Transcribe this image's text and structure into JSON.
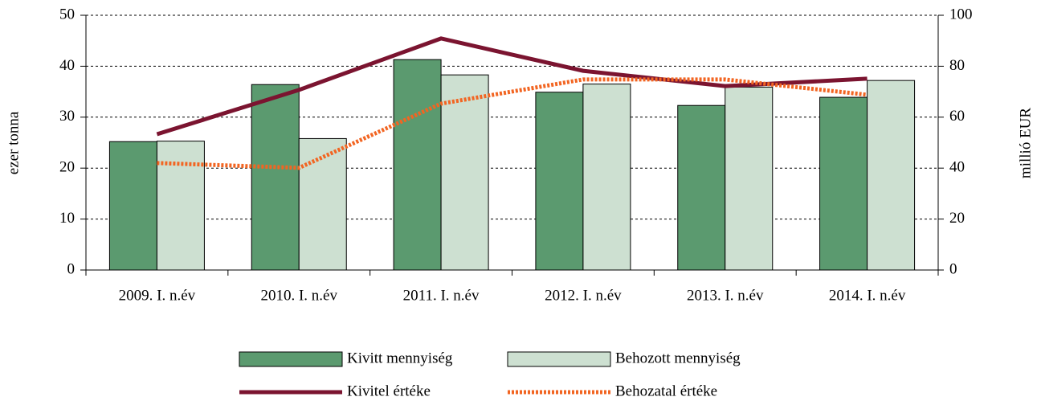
{
  "chart_data": {
    "type": "bar",
    "categories": [
      "2009. I. n.év",
      "2010. I. n.év",
      "2011. I. n.év",
      "2012. I. n.év",
      "2013. I. n.év",
      "2014. I. n.év"
    ],
    "series": [
      {
        "name": "Kivitt mennyiség",
        "type": "bar",
        "color": "#5b9a6f",
        "values": [
          25.2,
          36.4,
          41.3,
          34.9,
          32.3,
          33.9
        ]
      },
      {
        "name": "Behozott mennyiség",
        "type": "bar",
        "color": "#cde0d1",
        "values": [
          25.3,
          25.8,
          38.3,
          36.5,
          35.9,
          37.2
        ]
      },
      {
        "name": "Kivitel értéke",
        "type": "line",
        "axis": "y2",
        "color": "#7b1430",
        "style": "solid",
        "values": [
          53.3,
          70.7,
          90.9,
          78.2,
          72.2,
          75.1
        ]
      },
      {
        "name": "Behozatal értéke",
        "type": "line",
        "axis": "y2",
        "color": "#f26522",
        "style": "dotted",
        "values": [
          42.0,
          40.1,
          65.3,
          74.8,
          74.8,
          68.8
        ]
      }
    ],
    "ylabel": "ezer tonna",
    "y2label": "millió EUR",
    "ylim": [
      0,
      50
    ],
    "yticks": [
      0,
      10,
      20,
      30,
      40,
      50
    ],
    "y2lim": [
      0,
      100
    ],
    "y2ticks": [
      0,
      20,
      40,
      60,
      80,
      100
    ],
    "grid": true,
    "legend": "bottom"
  }
}
